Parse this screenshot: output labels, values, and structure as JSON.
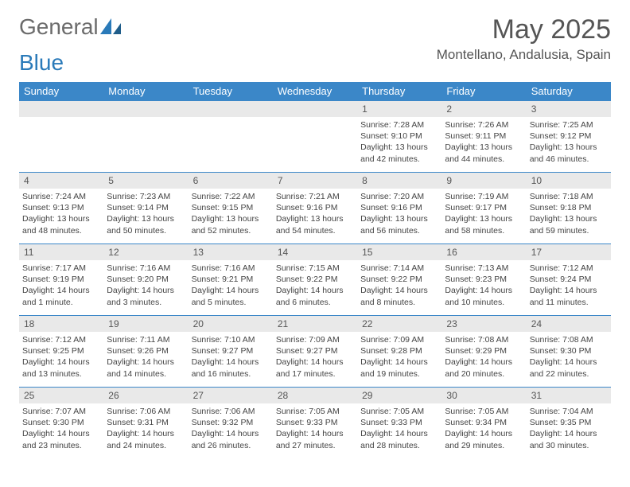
{
  "brand": {
    "part1": "General",
    "part2": "Blue"
  },
  "title": "May 2025",
  "location": "Montellano, Andalusia, Spain",
  "colors": {
    "header_bg": "#3b87c8",
    "header_text": "#ffffff",
    "daynum_bg": "#e9e9e9",
    "rule": "#3b87c8",
    "brand_gray": "#6b6b6b",
    "brand_blue": "#2a7ab9"
  },
  "weekdays": [
    "Sunday",
    "Monday",
    "Tuesday",
    "Wednesday",
    "Thursday",
    "Friday",
    "Saturday"
  ],
  "weeks": [
    [
      null,
      null,
      null,
      null,
      {
        "n": "1",
        "sr": "7:28 AM",
        "ss": "9:10 PM",
        "dl": "13 hours and 42 minutes."
      },
      {
        "n": "2",
        "sr": "7:26 AM",
        "ss": "9:11 PM",
        "dl": "13 hours and 44 minutes."
      },
      {
        "n": "3",
        "sr": "7:25 AM",
        "ss": "9:12 PM",
        "dl": "13 hours and 46 minutes."
      }
    ],
    [
      {
        "n": "4",
        "sr": "7:24 AM",
        "ss": "9:13 PM",
        "dl": "13 hours and 48 minutes."
      },
      {
        "n": "5",
        "sr": "7:23 AM",
        "ss": "9:14 PM",
        "dl": "13 hours and 50 minutes."
      },
      {
        "n": "6",
        "sr": "7:22 AM",
        "ss": "9:15 PM",
        "dl": "13 hours and 52 minutes."
      },
      {
        "n": "7",
        "sr": "7:21 AM",
        "ss": "9:16 PM",
        "dl": "13 hours and 54 minutes."
      },
      {
        "n": "8",
        "sr": "7:20 AM",
        "ss": "9:16 PM",
        "dl": "13 hours and 56 minutes."
      },
      {
        "n": "9",
        "sr": "7:19 AM",
        "ss": "9:17 PM",
        "dl": "13 hours and 58 minutes."
      },
      {
        "n": "10",
        "sr": "7:18 AM",
        "ss": "9:18 PM",
        "dl": "13 hours and 59 minutes."
      }
    ],
    [
      {
        "n": "11",
        "sr": "7:17 AM",
        "ss": "9:19 PM",
        "dl": "14 hours and 1 minute."
      },
      {
        "n": "12",
        "sr": "7:16 AM",
        "ss": "9:20 PM",
        "dl": "14 hours and 3 minutes."
      },
      {
        "n": "13",
        "sr": "7:16 AM",
        "ss": "9:21 PM",
        "dl": "14 hours and 5 minutes."
      },
      {
        "n": "14",
        "sr": "7:15 AM",
        "ss": "9:22 PM",
        "dl": "14 hours and 6 minutes."
      },
      {
        "n": "15",
        "sr": "7:14 AM",
        "ss": "9:22 PM",
        "dl": "14 hours and 8 minutes."
      },
      {
        "n": "16",
        "sr": "7:13 AM",
        "ss": "9:23 PM",
        "dl": "14 hours and 10 minutes."
      },
      {
        "n": "17",
        "sr": "7:12 AM",
        "ss": "9:24 PM",
        "dl": "14 hours and 11 minutes."
      }
    ],
    [
      {
        "n": "18",
        "sr": "7:12 AM",
        "ss": "9:25 PM",
        "dl": "14 hours and 13 minutes."
      },
      {
        "n": "19",
        "sr": "7:11 AM",
        "ss": "9:26 PM",
        "dl": "14 hours and 14 minutes."
      },
      {
        "n": "20",
        "sr": "7:10 AM",
        "ss": "9:27 PM",
        "dl": "14 hours and 16 minutes."
      },
      {
        "n": "21",
        "sr": "7:09 AM",
        "ss": "9:27 PM",
        "dl": "14 hours and 17 minutes."
      },
      {
        "n": "22",
        "sr": "7:09 AM",
        "ss": "9:28 PM",
        "dl": "14 hours and 19 minutes."
      },
      {
        "n": "23",
        "sr": "7:08 AM",
        "ss": "9:29 PM",
        "dl": "14 hours and 20 minutes."
      },
      {
        "n": "24",
        "sr": "7:08 AM",
        "ss": "9:30 PM",
        "dl": "14 hours and 22 minutes."
      }
    ],
    [
      {
        "n": "25",
        "sr": "7:07 AM",
        "ss": "9:30 PM",
        "dl": "14 hours and 23 minutes."
      },
      {
        "n": "26",
        "sr": "7:06 AM",
        "ss": "9:31 PM",
        "dl": "14 hours and 24 minutes."
      },
      {
        "n": "27",
        "sr": "7:06 AM",
        "ss": "9:32 PM",
        "dl": "14 hours and 26 minutes."
      },
      {
        "n": "28",
        "sr": "7:05 AM",
        "ss": "9:33 PM",
        "dl": "14 hours and 27 minutes."
      },
      {
        "n": "29",
        "sr": "7:05 AM",
        "ss": "9:33 PM",
        "dl": "14 hours and 28 minutes."
      },
      {
        "n": "30",
        "sr": "7:05 AM",
        "ss": "9:34 PM",
        "dl": "14 hours and 29 minutes."
      },
      {
        "n": "31",
        "sr": "7:04 AM",
        "ss": "9:35 PM",
        "dl": "14 hours and 30 minutes."
      }
    ]
  ],
  "labels": {
    "sunrise": "Sunrise: ",
    "sunset": "Sunset: ",
    "daylight": "Daylight: "
  }
}
